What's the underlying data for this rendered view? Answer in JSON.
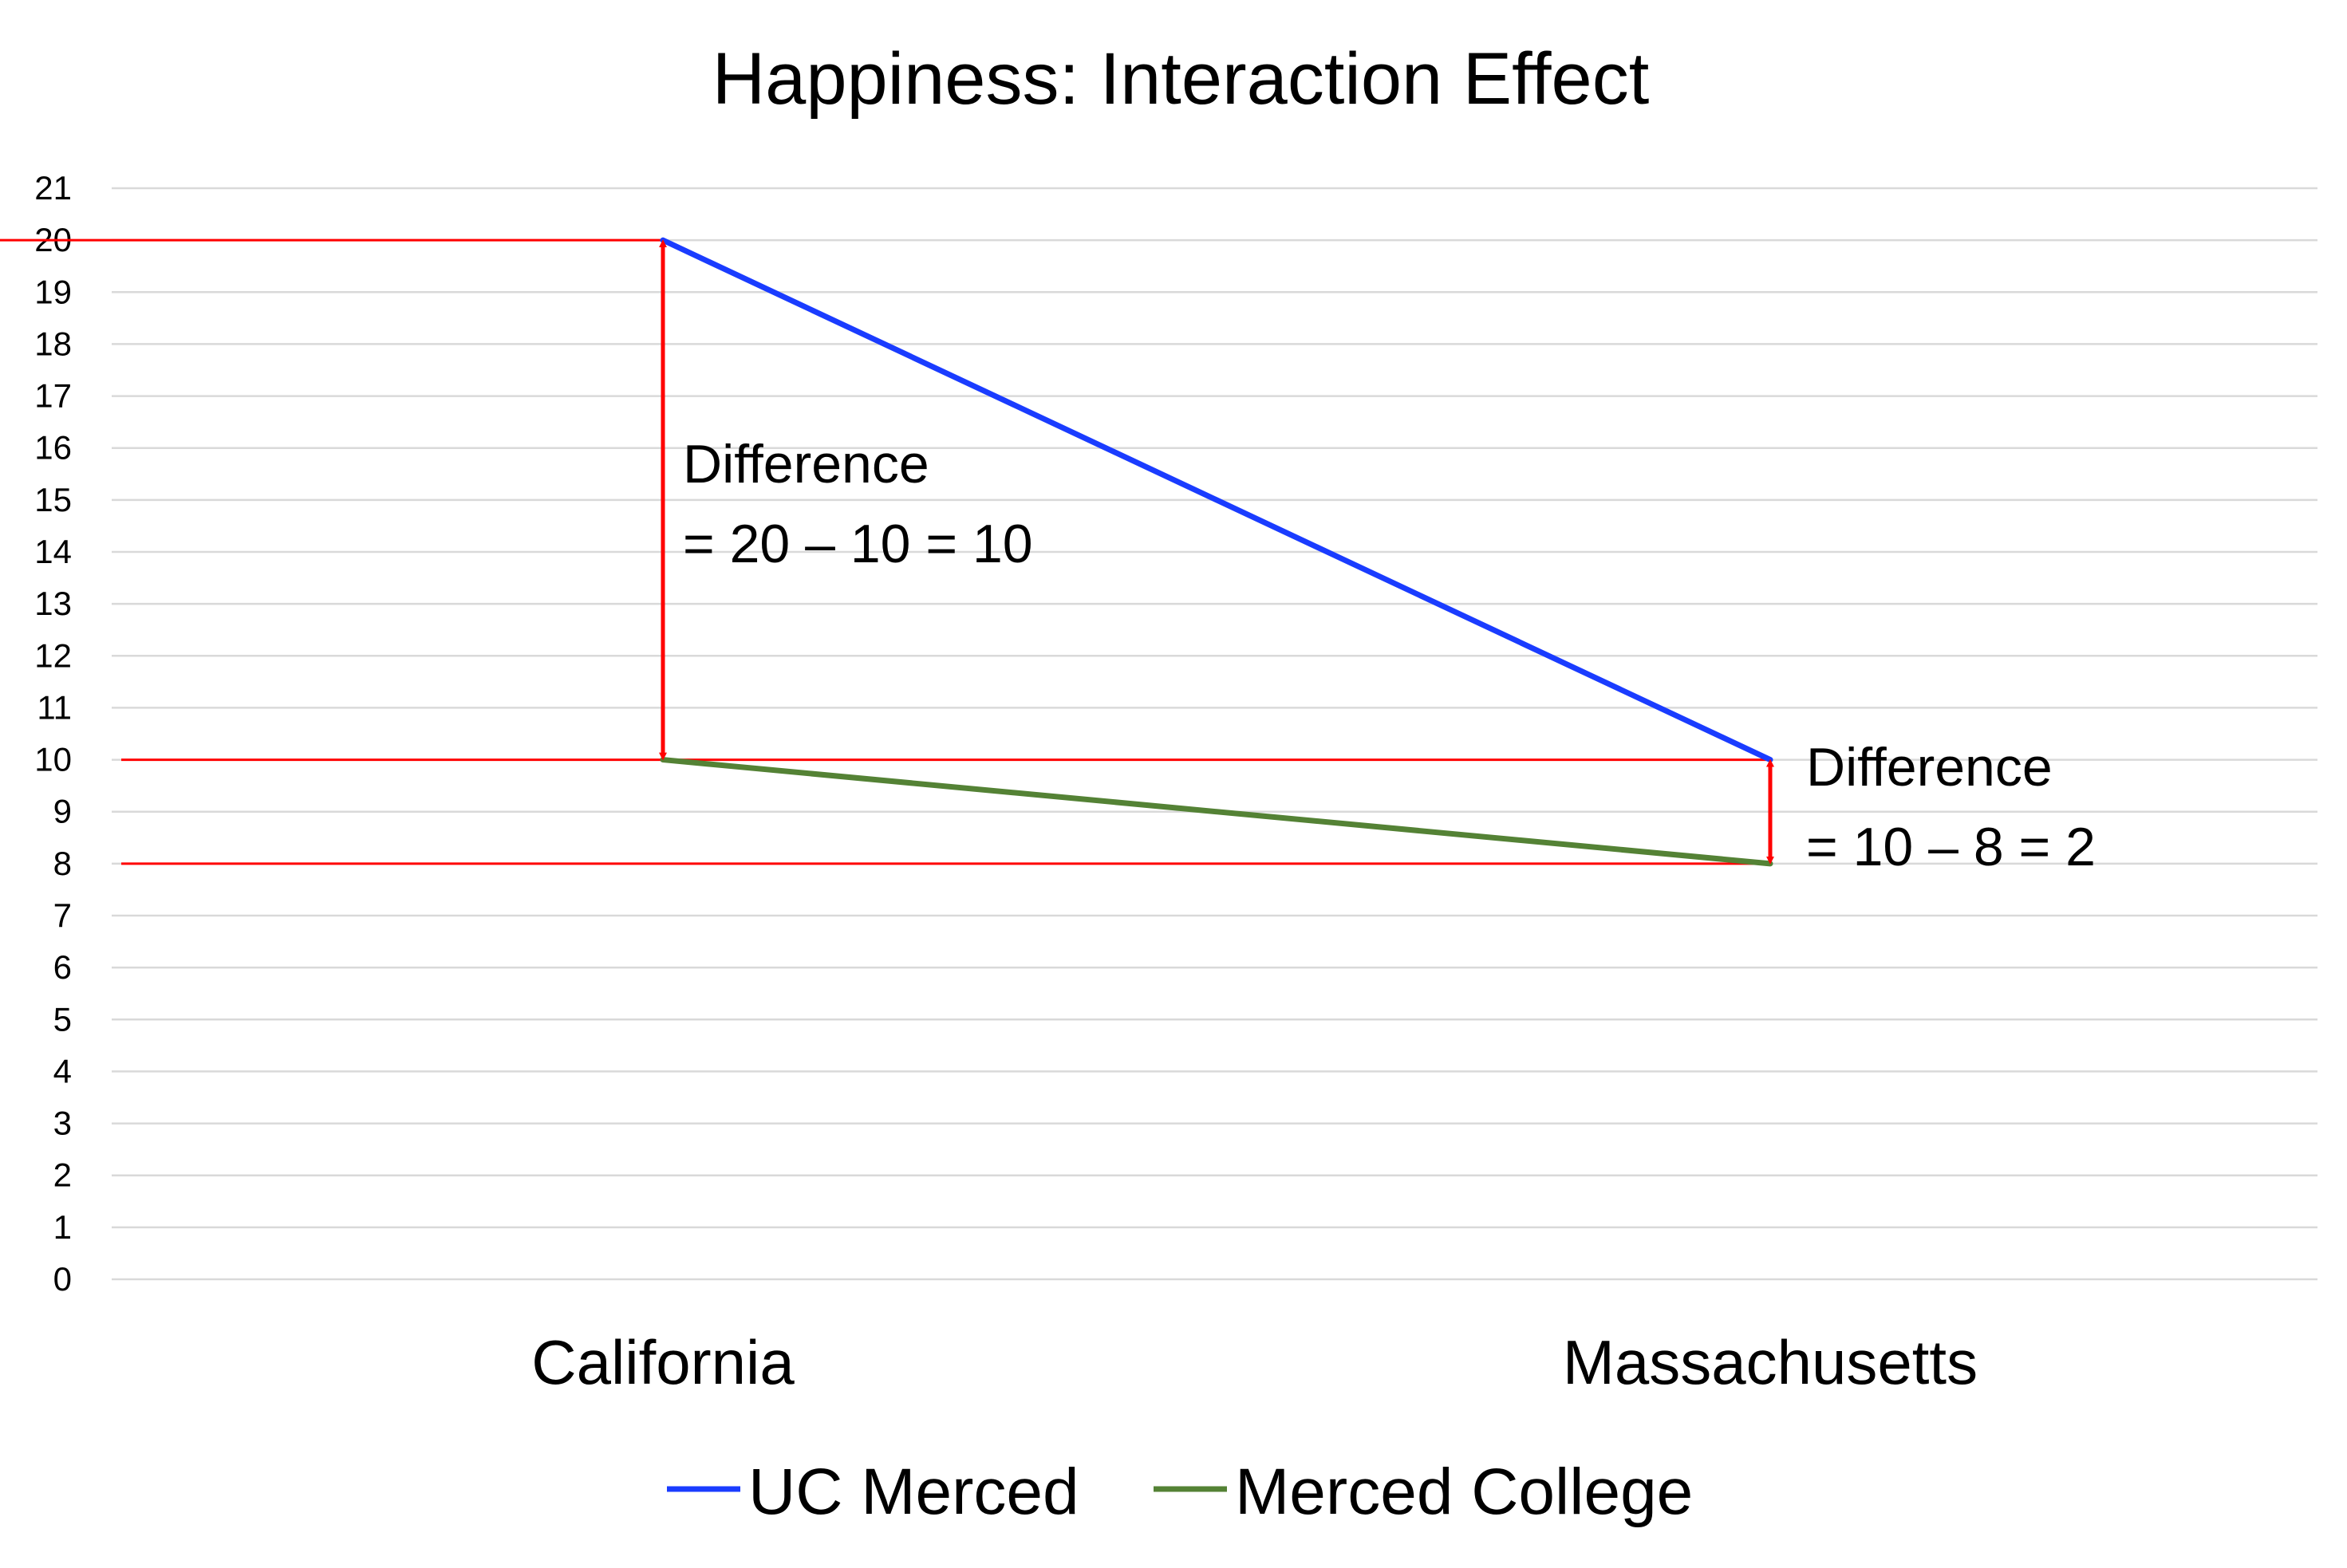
{
  "chart_data": {
    "type": "line",
    "title": "Happiness: Interaction Effect",
    "xlabel": "",
    "ylabel": "",
    "categories": [
      "California",
      "Massachusetts"
    ],
    "ylim": [
      0,
      21
    ],
    "yticks": [
      "0",
      "1",
      "2",
      "3",
      "4",
      "5",
      "6",
      "7",
      "8",
      "9",
      "10",
      "11",
      "12",
      "13",
      "14",
      "15",
      "16",
      "17",
      "18",
      "19",
      "20",
      "21"
    ],
    "grid": true,
    "legend_position": "bottom",
    "series": [
      {
        "name": "UC Merced",
        "values": [
          20,
          10
        ],
        "color": "#1a3cff"
      },
      {
        "name": "Merced College",
        "values": [
          10,
          8
        ],
        "color": "#548235"
      }
    ],
    "reference_lines": [
      {
        "y": 20,
        "color": "#ff0000",
        "extends_to": "California"
      },
      {
        "y": 10,
        "color": "#ff0000",
        "extends_to": "Massachusetts"
      },
      {
        "y": 8,
        "color": "#ff0000",
        "extends_to": "Massachusetts"
      }
    ],
    "annotations": [
      {
        "category": "California",
        "from": 10,
        "to": 20,
        "color": "#ff0000",
        "lines": [
          "Difference",
          "= 20 – 10 = 10"
        ]
      },
      {
        "category": "Massachusetts",
        "from": 8,
        "to": 10,
        "color": "#ff0000",
        "lines": [
          "Difference",
          "= 10 – 8 = 2"
        ]
      }
    ]
  }
}
